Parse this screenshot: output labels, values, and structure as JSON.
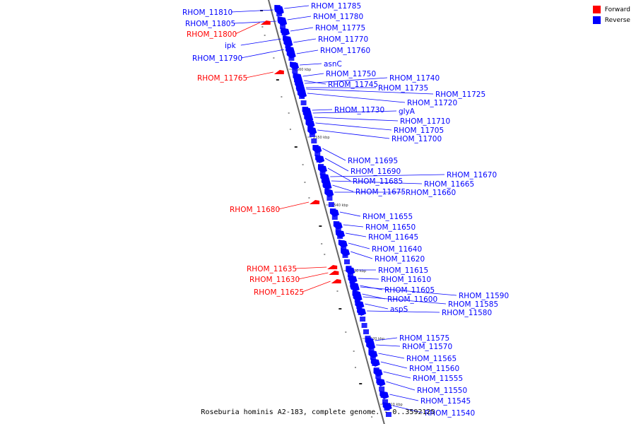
{
  "colors": {
    "forward": "#ff0000",
    "reverse": "#0000ff",
    "backbone": "#666666"
  },
  "legend": {
    "forward": "Forward",
    "reverse": "Reverse"
  },
  "caption": "Roseburia hominis A2-183, complete genome. - 0..3592125",
  "ticks": [
    "2560 kbp",
    "2550 kbp",
    "2540 kbp",
    "2530 kbp",
    "2520 kbp",
    "2510 kbp"
  ],
  "genes": [
    {
      "name": "RHOM_11810",
      "strand": "reverse",
      "side": "left"
    },
    {
      "name": "RHOM_11805",
      "strand": "reverse",
      "side": "left"
    },
    {
      "name": "RHOM_11800",
      "strand": "forward",
      "side": "left"
    },
    {
      "name": "ipk",
      "strand": "reverse",
      "side": "left"
    },
    {
      "name": "RHOM_11790",
      "strand": "reverse",
      "side": "left"
    },
    {
      "name": "RHOM_11785",
      "strand": "reverse",
      "side": "right"
    },
    {
      "name": "RHOM_11780",
      "strand": "reverse",
      "side": "right"
    },
    {
      "name": "RHOM_11775",
      "strand": "reverse",
      "side": "right"
    },
    {
      "name": "RHOM_11770",
      "strand": "reverse",
      "side": "right"
    },
    {
      "name": "RHOM_11760",
      "strand": "reverse",
      "side": "right"
    },
    {
      "name": "asnC",
      "strand": "reverse",
      "side": "right"
    },
    {
      "name": "RHOM_11765",
      "strand": "forward",
      "side": "left"
    },
    {
      "name": "RHOM_11750",
      "strand": "reverse",
      "side": "right"
    },
    {
      "name": "RHOM_11745",
      "strand": "reverse",
      "side": "right"
    },
    {
      "name": "RHOM_11740",
      "strand": "reverse",
      "side": "right"
    },
    {
      "name": "RHOM_11735",
      "strand": "reverse",
      "side": "right"
    },
    {
      "name": "RHOM_11725",
      "strand": "reverse",
      "side": "right"
    },
    {
      "name": "RHOM_11720",
      "strand": "reverse",
      "side": "right"
    },
    {
      "name": "RHOM_11730",
      "strand": "reverse",
      "side": "right"
    },
    {
      "name": "glyA",
      "strand": "reverse",
      "side": "right"
    },
    {
      "name": "RHOM_11710",
      "strand": "reverse",
      "side": "right"
    },
    {
      "name": "RHOM_11705",
      "strand": "reverse",
      "side": "right"
    },
    {
      "name": "RHOM_11700",
      "strand": "reverse",
      "side": "right"
    },
    {
      "name": "RHOM_11695",
      "strand": "reverse",
      "side": "right"
    },
    {
      "name": "RHOM_11690",
      "strand": "reverse",
      "side": "right"
    },
    {
      "name": "RHOM_11670",
      "strand": "reverse",
      "side": "right"
    },
    {
      "name": "RHOM_11685",
      "strand": "reverse",
      "side": "right"
    },
    {
      "name": "RHOM_11665",
      "strand": "reverse",
      "side": "right"
    },
    {
      "name": "RHOM_11675",
      "strand": "reverse",
      "side": "right"
    },
    {
      "name": "RHOM_11660",
      "strand": "reverse",
      "side": "right"
    },
    {
      "name": "RHOM_11680",
      "strand": "forward",
      "side": "left"
    },
    {
      "name": "RHOM_11655",
      "strand": "reverse",
      "side": "right"
    },
    {
      "name": "RHOM_11650",
      "strand": "reverse",
      "side": "right"
    },
    {
      "name": "RHOM_11645",
      "strand": "reverse",
      "side": "right"
    },
    {
      "name": "RHOM_11640",
      "strand": "reverse",
      "side": "right"
    },
    {
      "name": "RHOM_11620",
      "strand": "reverse",
      "side": "right"
    },
    {
      "name": "RHOM_11635",
      "strand": "forward",
      "side": "left"
    },
    {
      "name": "RHOM_11615",
      "strand": "reverse",
      "side": "right"
    },
    {
      "name": "RHOM_11630",
      "strand": "forward",
      "side": "left"
    },
    {
      "name": "RHOM_11610",
      "strand": "reverse",
      "side": "right"
    },
    {
      "name": "RHOM_11625",
      "strand": "forward",
      "side": "left"
    },
    {
      "name": "RHOM_11605",
      "strand": "reverse",
      "side": "right"
    },
    {
      "name": "RHOM_11590",
      "strand": "reverse",
      "side": "right"
    },
    {
      "name": "RHOM_11600",
      "strand": "reverse",
      "side": "right"
    },
    {
      "name": "RHOM_11585",
      "strand": "reverse",
      "side": "right"
    },
    {
      "name": "aspS",
      "strand": "reverse",
      "side": "right"
    },
    {
      "name": "RHOM_11580",
      "strand": "reverse",
      "side": "right"
    },
    {
      "name": "RHOM_11575",
      "strand": "reverse",
      "side": "right"
    },
    {
      "name": "RHOM_11570",
      "strand": "reverse",
      "side": "right"
    },
    {
      "name": "RHOM_11565",
      "strand": "reverse",
      "side": "right"
    },
    {
      "name": "RHOM_11560",
      "strand": "reverse",
      "side": "right"
    },
    {
      "name": "RHOM_11555",
      "strand": "reverse",
      "side": "right"
    },
    {
      "name": "RHOM_11550",
      "strand": "reverse",
      "side": "right"
    },
    {
      "name": "RHOM_11545",
      "strand": "reverse",
      "side": "right"
    },
    {
      "name": "RHOM_11540",
      "strand": "reverse",
      "side": "right"
    }
  ]
}
